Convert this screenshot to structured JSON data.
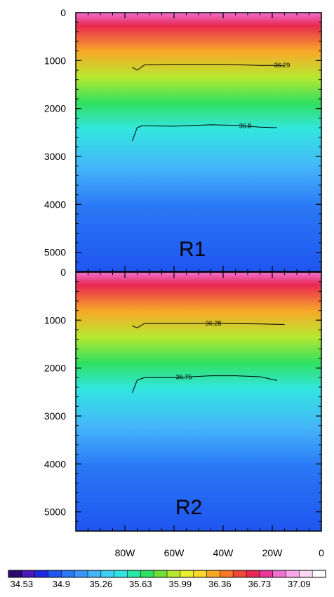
{
  "chart_data": {
    "type": "heatmap",
    "colors": {
      "land": "#c0c0c0",
      "contour": "#000000",
      "axis": "#000000"
    },
    "xlim": [
      -100,
      0
    ],
    "x_ticks": [
      -80,
      -60,
      -40,
      -20,
      0
    ],
    "x_tick_labels": [
      "80W",
      "60W",
      "40W",
      "20W",
      "0"
    ],
    "ylim": [
      0,
      5400
    ],
    "y_ticks": [
      0,
      1000,
      2000,
      3000,
      4000,
      5000
    ],
    "y_tick_labels": [
      "0",
      "1000",
      "2000",
      "3000",
      "4000",
      "5000"
    ],
    "panels": [
      {
        "label": "R1",
        "contours": [
          {
            "label": "36.29",
            "label_x": -16,
            "points": [
              [
                -77,
                1140
              ],
              [
                -75,
                1200
              ],
              [
                -72,
                1090
              ],
              [
                -60,
                1080
              ],
              [
                -40,
                1080
              ],
              [
                -25,
                1100
              ],
              [
                -15,
                1100
              ]
            ]
          },
          {
            "label": "36.8",
            "label_x": -31,
            "points": [
              [
                -77,
                2680
              ],
              [
                -75,
                2400
              ],
              [
                -73,
                2360
              ],
              [
                -60,
                2370
              ],
              [
                -45,
                2340
              ],
              [
                -35,
                2350
              ],
              [
                -25,
                2390
              ],
              [
                -18,
                2400
              ]
            ]
          }
        ]
      },
      {
        "label": "R2",
        "contours": [
          {
            "label": "36.28",
            "label_x": -44,
            "points": [
              [
                -77,
                1120
              ],
              [
                -75,
                1160
              ],
              [
                -72,
                1070
              ],
              [
                -60,
                1070
              ],
              [
                -40,
                1070
              ],
              [
                -25,
                1080
              ],
              [
                -15,
                1090
              ]
            ]
          },
          {
            "label": "36.75",
            "label_x": -56,
            "points": [
              [
                -77,
                2520
              ],
              [
                -75,
                2250
              ],
              [
                -72,
                2200
              ],
              [
                -60,
                2200
              ],
              [
                -45,
                2160
              ],
              [
                -35,
                2160
              ],
              [
                -25,
                2180
              ],
              [
                -18,
                2260
              ]
            ]
          }
        ]
      }
    ],
    "colorbar": {
      "labels": [
        "34.53",
        "34.9",
        "35.26",
        "35.63",
        "35.99",
        "36.36",
        "36.73",
        "37.09"
      ],
      "colors": [
        "#2a0a6e",
        "#4a1ab8",
        "#1a2ae0",
        "#1f55f0",
        "#2a78f5",
        "#3a96f8",
        "#45b5fa",
        "#3fd0f5",
        "#32e6e0",
        "#28e8a8",
        "#30e060",
        "#70e038",
        "#b8e830",
        "#e8f030",
        "#f8d828",
        "#f8a828",
        "#f87828",
        "#f04838",
        "#e82850",
        "#e83898",
        "#f070d0",
        "#f8a8e8",
        "#fcd8f4",
        "#ffffff"
      ]
    }
  }
}
